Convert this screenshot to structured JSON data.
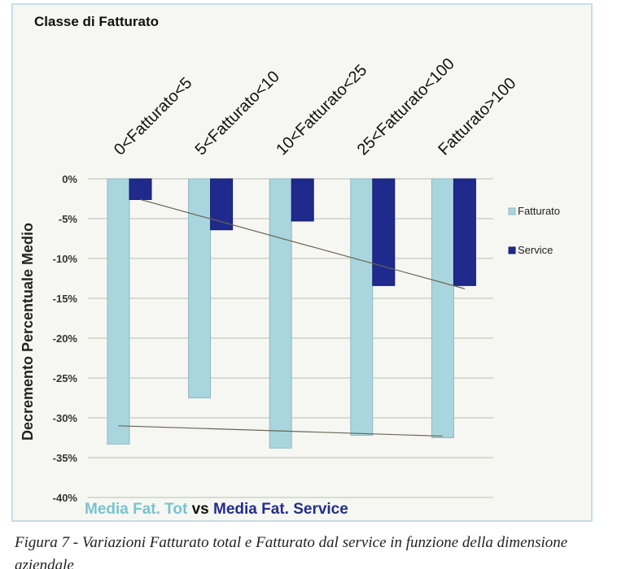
{
  "chart_data": {
    "type": "bar",
    "title": "Classe di Fatturato",
    "ylabel": "Decremento Percentuale Medio",
    "categories": [
      "0<Fatturato<5",
      "5<Fatturato<10",
      "10<Fatturato<25",
      "25<Fatturato<100",
      "Fatturato>100"
    ],
    "series": [
      {
        "name": "Fatturato",
        "values": [
          -33.3,
          -27.5,
          -33.8,
          -32.2,
          -32.5
        ],
        "color": "#a9d6de"
      },
      {
        "name": "Service",
        "values": [
          -2.6,
          -6.4,
          -5.3,
          -13.4,
          -13.4
        ],
        "color": "#1f2a8c"
      }
    ],
    "trendlines": [
      {
        "series": "Fatturato",
        "start": -31.0,
        "end": -32.3
      },
      {
        "series": "Service",
        "start": -2.6,
        "end": -13.8
      }
    ],
    "ylim": [
      -40,
      0
    ],
    "ytick_step": 5,
    "yticks": [
      "0%",
      "-5%",
      "-10%",
      "-15%",
      "-20%",
      "-25%",
      "-30%",
      "-35%",
      "-40%"
    ],
    "grid": true,
    "legend_position": "right",
    "footer": {
      "part1": "Media Fat. Tot",
      "part2": " vs ",
      "part3": "Media Fat. Service"
    },
    "footer_colors": {
      "part1": "#79c3cf",
      "part2": "#111111",
      "part3": "#232d8e"
    }
  },
  "caption": "Figura 7 - Variazioni Fatturato total e Fatturato dal service in funzione della dimensione aziendale"
}
